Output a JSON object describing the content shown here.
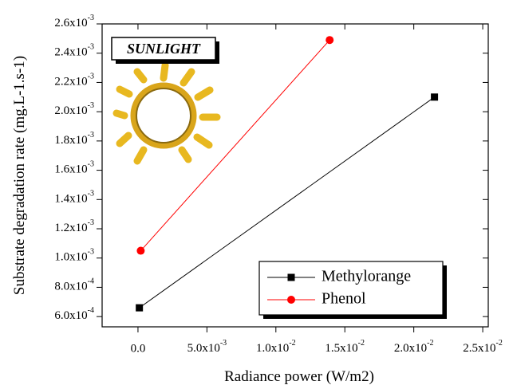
{
  "chart_data": {
    "type": "line",
    "x_label": "Radiance power (W/m2)",
    "y_label": "Substrate degradation rate (mg.L-1.s-1)",
    "annotation": "SUNLIGHT",
    "xlim": [
      -0.0026,
      0.0254
    ],
    "ylim": [
      0.00053,
      0.0026
    ],
    "xticks": [
      {
        "value": 0,
        "label": "0.0"
      },
      {
        "value": 0.005,
        "label": "5.0x10-3"
      },
      {
        "value": 0.01,
        "label": "1.0x10-2"
      },
      {
        "value": 0.015,
        "label": "1.5x10-2"
      },
      {
        "value": 0.02,
        "label": "2.0x10-2"
      },
      {
        "value": 0.025,
        "label": "2.5x10-2"
      }
    ],
    "yticks": [
      {
        "value": 0.0006,
        "label": "6.0x10-4"
      },
      {
        "value": 0.0008,
        "label": "8.0x10-4"
      },
      {
        "value": 0.001,
        "label": "1.0x10-3"
      },
      {
        "value": 0.0012,
        "label": "1.2x10-3"
      },
      {
        "value": 0.0014,
        "label": "1.4x10-3"
      },
      {
        "value": 0.0016,
        "label": "1.6x10-3"
      },
      {
        "value": 0.0018,
        "label": "1.8x10-3"
      },
      {
        "value": 0.002,
        "label": "2.0x10-3"
      },
      {
        "value": 0.0022,
        "label": "2.2x10-3"
      },
      {
        "value": 0.0024,
        "label": "2.4x10-3"
      },
      {
        "value": 0.0026,
        "label": "2.6x10-3"
      }
    ],
    "legend_position": "lower right",
    "series": [
      {
        "name": "Methylorange",
        "color": "#000000",
        "marker": "square",
        "x": [
          0.0001,
          0.0215
        ],
        "values": [
          0.00066,
          0.0021
        ]
      },
      {
        "name": "Phenol",
        "color": "#ff0000",
        "marker": "circle",
        "x": [
          0.0002,
          0.0139
        ],
        "values": [
          0.00105,
          0.00249
        ]
      }
    ]
  }
}
